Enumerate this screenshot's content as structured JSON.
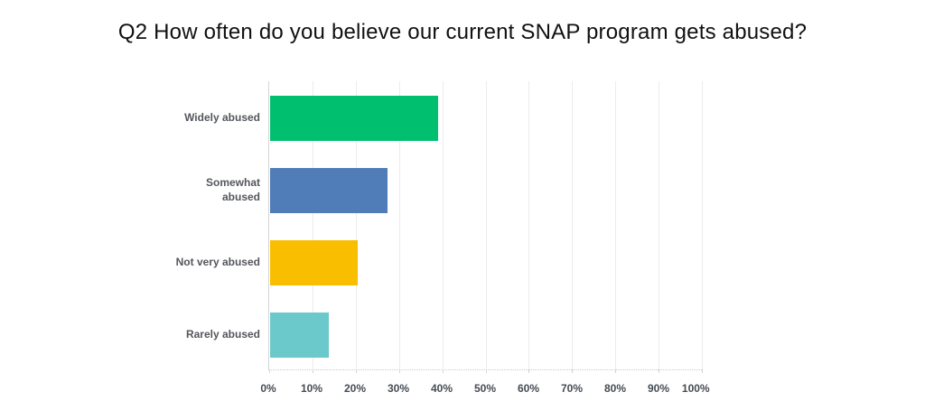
{
  "page": {
    "background": "#ffffff"
  },
  "chart_data": {
    "type": "bar",
    "orientation": "horizontal",
    "title": "Q2 How often do you believe our current SNAP program gets abused?",
    "categories": [
      "Widely abused",
      "Somewhat abused",
      "Not very abused",
      "Rarely abused"
    ],
    "values": [
      38.8,
      27.2,
      20.2,
      13.5
    ],
    "value_unit": "percent",
    "bar_colors": [
      "#00BF6F",
      "#507CB8",
      "#F9BE00",
      "#6BC8CB"
    ],
    "xlabel": "",
    "ylabel": "",
    "xlim": [
      0,
      100
    ],
    "x_tick_step": 10,
    "x_tick_labels": [
      "0%",
      "10%",
      "20%",
      "30%",
      "40%",
      "50%",
      "60%",
      "70%",
      "80%",
      "90%",
      "100%"
    ],
    "grid": "vertical",
    "legend": "none"
  },
  "style": {
    "title_color": "#111111",
    "grid_color": "#ececec",
    "axis_line_color": "#d4d4d4",
    "category_label_color": "#54565b",
    "tick_label_color": "#454c54"
  }
}
